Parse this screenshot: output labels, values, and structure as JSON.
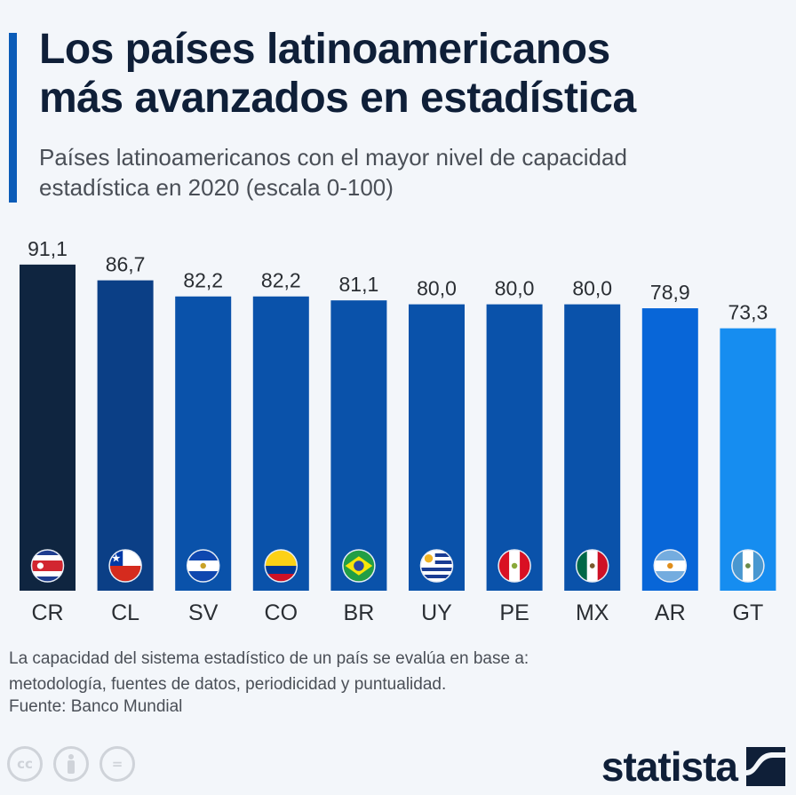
{
  "header": {
    "title_line1": "Los países latinoamericanos",
    "title_line2": "más avanzados en estadística",
    "subtitle_line1": "Países latinoamericanos con el mayor nivel de capacidad",
    "subtitle_line2": "estadística en 2020 (escala 0-100)"
  },
  "chart_data": {
    "type": "bar",
    "title": "Los países latinoamericanos más avanzados en estadística",
    "subtitle": "Países latinoamericanos con el mayor nivel de capacidad estadística en 2020 (escala 0-100)",
    "categories": [
      "CR",
      "CL",
      "SV",
      "CO",
      "BR",
      "UY",
      "PE",
      "MX",
      "AR",
      "GT"
    ],
    "values": [
      91.1,
      86.7,
      82.2,
      82.2,
      81.1,
      80.0,
      80.0,
      80.0,
      78.9,
      73.3
    ],
    "value_labels": [
      "91,1",
      "86,7",
      "82,2",
      "82,2",
      "81,1",
      "80,0",
      "80,0",
      "80,0",
      "78,9",
      "73,3"
    ],
    "flags": [
      "costa-rica-flag",
      "chile-flag",
      "el-salvador-flag",
      "colombia-flag",
      "brazil-flag",
      "uruguay-flag",
      "peru-flag",
      "mexico-flag",
      "argentina-flag",
      "guatemala-flag"
    ],
    "bar_colors": [
      "#0f2540",
      "#0b3f86",
      "#0a52aa",
      "#0a52aa",
      "#0a52aa",
      "#0a52aa",
      "#0a52aa",
      "#0a52aa",
      "#0866d8",
      "#168df0"
    ],
    "xlabel": "",
    "ylabel": "",
    "ylim": [
      0,
      100
    ],
    "grid": false,
    "legend": "none"
  },
  "footer": {
    "note_line1": "La capacidad del sistema estadístico de un país se evalúa en base a:",
    "note_line2": "metodología, fuentes de datos, periodicidad y puntualidad.",
    "source": "Fuente: Banco Mundial",
    "cc_icons": [
      "cc",
      "by",
      "nd"
    ],
    "cc_labels": [
      "cc",
      "",
      "="
    ],
    "logo_text": "statista"
  },
  "colors": {
    "accent": "#0b5cb8",
    "title": "#0f1f38",
    "text": "#4a4f57",
    "background": "#f3f6fa"
  }
}
